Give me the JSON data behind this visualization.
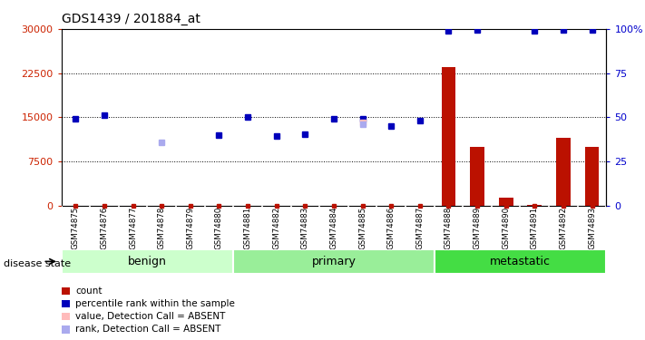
{
  "title": "GDS1439 / 201884_at",
  "samples": [
    "GSM74875",
    "GSM74876",
    "GSM74877",
    "GSM74878",
    "GSM74879",
    "GSM74880",
    "GSM74881",
    "GSM74882",
    "GSM74883",
    "GSM74884",
    "GSM74885",
    "GSM74886",
    "GSM74887",
    "GSM74888",
    "GSM74889",
    "GSM74890",
    "GSM74891",
    "GSM74892",
    "GSM74893"
  ],
  "count_values": [
    50,
    50,
    50,
    50,
    50,
    50,
    50,
    50,
    50,
    50,
    50,
    50,
    50,
    23500,
    10000,
    1400,
    200,
    11500,
    10000
  ],
  "percentile_values": [
    14800,
    15300,
    null,
    null,
    null,
    12000,
    15100,
    11800,
    12200,
    14800,
    14800,
    13500,
    14500,
    29600,
    29800,
    null,
    29600,
    29800,
    29800
  ],
  "percentile_absent_rank": [
    null,
    null,
    null,
    10800,
    null,
    null,
    null,
    null,
    null,
    null,
    13900,
    null,
    null,
    null,
    null,
    null,
    null,
    null,
    null
  ],
  "percentile_absent_value": [
    null,
    null,
    null,
    null,
    null,
    null,
    null,
    null,
    null,
    null,
    14200,
    null,
    null,
    null,
    null,
    null,
    null,
    null,
    null
  ],
  "groups": [
    {
      "name": "benign",
      "start": 0,
      "end": 6,
      "color": "#CCFFCC"
    },
    {
      "name": "primary",
      "start": 6,
      "end": 13,
      "color": "#99EE99"
    },
    {
      "name": "metastatic",
      "start": 13,
      "end": 19,
      "color": "#44DD44"
    }
  ],
  "ylim_left": [
    0,
    30000
  ],
  "ylim_right": [
    0,
    100
  ],
  "yticks_left": [
    0,
    7500,
    15000,
    22500,
    30000
  ],
  "yticks_right": [
    0,
    25,
    50,
    75,
    100
  ],
  "bar_color": "#BB1100",
  "dot_color": "#0000BB",
  "dot_absent_rank_color": "#AAAAEE",
  "dot_absent_value_color": "#FFBBBB",
  "bar_width": 0.5,
  "background_color": "#FFFFFF",
  "sample_box_color": "#CCCCCC",
  "legend_items": [
    {
      "label": "count",
      "color": "#BB1100"
    },
    {
      "label": "percentile rank within the sample",
      "color": "#0000BB"
    },
    {
      "label": "value, Detection Call = ABSENT",
      "color": "#FFBBBB"
    },
    {
      "label": "rank, Detection Call = ABSENT",
      "color": "#AAAAEE"
    }
  ]
}
